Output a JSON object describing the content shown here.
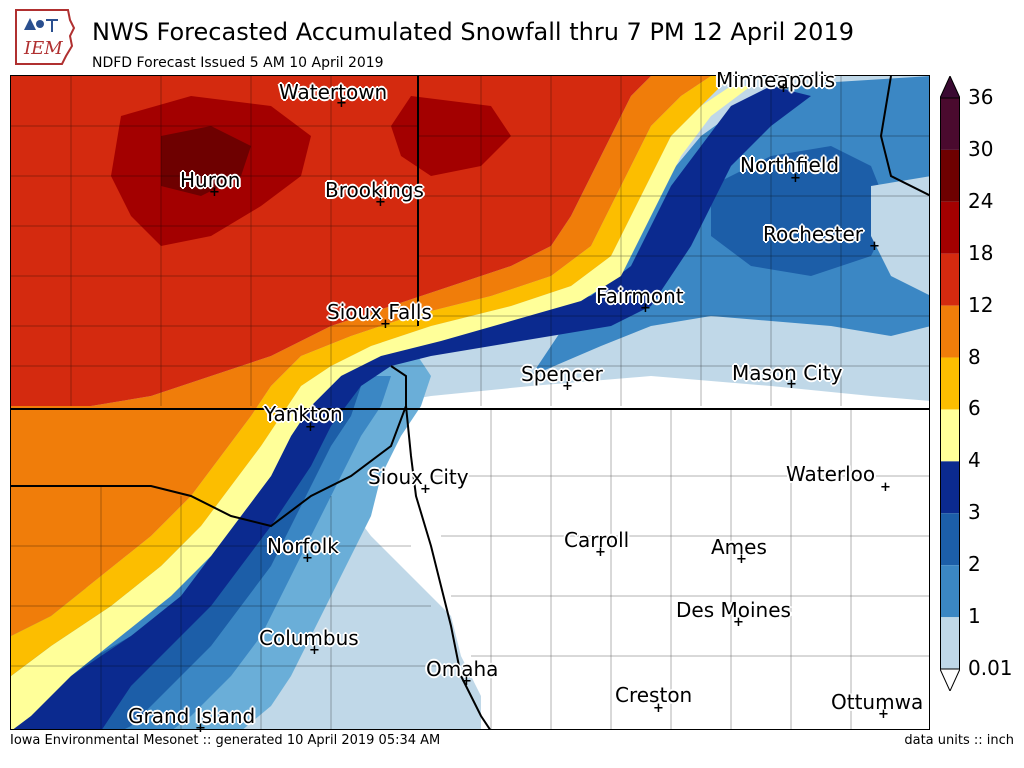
{
  "header": {
    "logo_text": "IEM",
    "title": "NWS Forecasted Accumulated Snowfall thru 7 PM 12 April 2019",
    "subtitle": "NDFD Forecast Issued 5 AM 10 April 2019"
  },
  "cities": [
    {
      "key": "minneapolis",
      "name": "Minneapolis"
    },
    {
      "key": "watertown",
      "name": "Watertown"
    },
    {
      "key": "northfield",
      "name": "Northfield"
    },
    {
      "key": "huron",
      "name": "Huron"
    },
    {
      "key": "brookings",
      "name": "Brookings"
    },
    {
      "key": "rochester",
      "name": "Rochester"
    },
    {
      "key": "fairmont",
      "name": "Fairmont"
    },
    {
      "key": "sioux_falls",
      "name": "Sioux Falls"
    },
    {
      "key": "spencer",
      "name": "Spencer"
    },
    {
      "key": "mason_city",
      "name": "Mason City"
    },
    {
      "key": "yankton",
      "name": "Yankton"
    },
    {
      "key": "sioux_city",
      "name": "Sioux City"
    },
    {
      "key": "waterloo",
      "name": "Waterloo"
    },
    {
      "key": "carroll",
      "name": "Carroll"
    },
    {
      "key": "ames",
      "name": "Ames"
    },
    {
      "key": "norfolk",
      "name": "Norfolk"
    },
    {
      "key": "des_moines",
      "name": "Des Moines"
    },
    {
      "key": "columbus",
      "name": "Columbus"
    },
    {
      "key": "omaha",
      "name": "Omaha"
    },
    {
      "key": "creston",
      "name": "Creston"
    },
    {
      "key": "ottumwa",
      "name": "Ottumwa"
    },
    {
      "key": "grand_island",
      "name": "Grand Island"
    }
  ],
  "colorbar": {
    "ticks": [
      "36",
      "30",
      "24",
      "18",
      "12",
      "8",
      "6",
      "4",
      "3",
      "2",
      "1",
      "0.01"
    ],
    "colors": [
      "#4a0a2e",
      "#6e0000",
      "#a30000",
      "#d42a0f",
      "#f07d0a",
      "#fcbe00",
      "#ffff99",
      "#0b2a8f",
      "#1c5ea8",
      "#3b87c4",
      "#6aaed8",
      "#c0d8e8"
    ],
    "extend_colors": {
      "max": "#3a0a32",
      "min": "#ffffff"
    }
  },
  "footer": {
    "left": "Iowa Environmental Mesonet :: generated 10 April 2019 05:34 AM",
    "right": "data units :: inch"
  }
}
